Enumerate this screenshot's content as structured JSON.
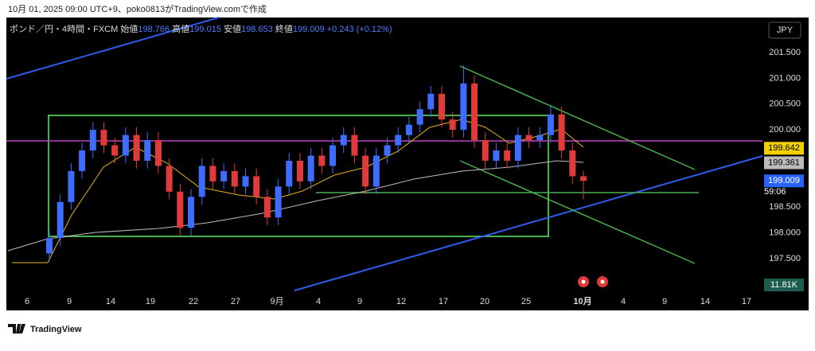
{
  "header": {
    "credit": "10月 01, 2025 09:00 UTC+9、poko0813がTradingView.comで作成"
  },
  "legend": {
    "symbol": "ポンド／円・4時間・FXCM",
    "open_label": "始値",
    "open": "198.766",
    "high_label": "高値",
    "high": "199.015",
    "low_label": "安値",
    "low": "198.653",
    "close_label": "終値",
    "close": "199.009",
    "change": "+0.243 (+0.12%)"
  },
  "currency": "JPY",
  "price_axis": {
    "ticks": [
      {
        "value": 201.5,
        "label": "201.500"
      },
      {
        "value": 201,
        "label": "201.000"
      },
      {
        "value": 200.5,
        "label": "200.500"
      },
      {
        "value": 200,
        "label": "200.000"
      },
      {
        "value": 198.5,
        "label": "198.500"
      },
      {
        "value": 198,
        "label": "198.000"
      },
      {
        "value": 197.5,
        "label": "197.500"
      }
    ]
  },
  "price_tags": [
    {
      "value": 199.642,
      "label": "199.642"
    },
    {
      "value": 199.361,
      "label": "199.361"
    },
    {
      "value": 199.009,
      "label": "199.009"
    }
  ],
  "countdown": "59:06",
  "volume_label": "11.81K",
  "time_axis": [
    "6",
    "9",
    "14",
    "19",
    "22",
    "27",
    "9月",
    "4",
    "9",
    "12",
    "17",
    "20",
    "25",
    "10月",
    "4",
    "9",
    "14",
    "17"
  ],
  "candles": [
    [
      197.6,
      198.05,
      197.45,
      197.9
    ],
    [
      197.9,
      198.75,
      197.75,
      198.6
    ],
    [
      198.6,
      199.35,
      198.45,
      199.2
    ],
    [
      199.2,
      199.75,
      199.05,
      199.6
    ],
    [
      199.6,
      200.15,
      199.45,
      200
    ],
    [
      200,
      200.15,
      199.55,
      199.7
    ],
    [
      199.7,
      199.85,
      199.35,
      199.5
    ],
    [
      199.5,
      200.05,
      199.35,
      199.9
    ],
    [
      199.9,
      200.05,
      199.25,
      199.4
    ],
    [
      199.4,
      199.95,
      199.25,
      199.8
    ],
    [
      199.8,
      199.95,
      199.15,
      199.3
    ],
    [
      199.3,
      199.45,
      198.65,
      198.8
    ],
    [
      198.8,
      198.95,
      197.95,
      198.1
    ],
    [
      198.1,
      198.85,
      197.95,
      198.7
    ],
    [
      198.7,
      199.45,
      198.55,
      199.3
    ],
    [
      199.3,
      199.45,
      198.85,
      199
    ],
    [
      199,
      199.35,
      198.85,
      199.2
    ],
    [
      199.2,
      199.35,
      198.75,
      198.9
    ],
    [
      198.9,
      199.25,
      198.75,
      199.1
    ],
    [
      199.1,
      199.25,
      198.55,
      198.7
    ],
    [
      198.7,
      198.85,
      198.15,
      198.3
    ],
    [
      198.3,
      199.05,
      198.15,
      198.9
    ],
    [
      198.9,
      199.55,
      198.75,
      199.4
    ],
    [
      199.4,
      199.55,
      198.85,
      199
    ],
    [
      199,
      199.65,
      198.85,
      199.5
    ],
    [
      199.5,
      199.65,
      199.15,
      199.3
    ],
    [
      199.3,
      199.85,
      199.15,
      199.7
    ],
    [
      199.7,
      200.05,
      199.55,
      199.9
    ],
    [
      199.9,
      200.05,
      199.35,
      199.5
    ],
    [
      199.5,
      199.65,
      198.75,
      198.9
    ],
    [
      198.9,
      199.65,
      198.75,
      199.5
    ],
    [
      199.5,
      199.85,
      199.35,
      199.7
    ],
    [
      199.7,
      200.05,
      199.55,
      199.9
    ],
    [
      199.9,
      200.25,
      199.75,
      200.1
    ],
    [
      200.1,
      200.55,
      199.95,
      200.4
    ],
    [
      200.4,
      200.85,
      200.25,
      200.7
    ],
    [
      200.7,
      200.85,
      200.05,
      200.2
    ],
    [
      200.2,
      200.35,
      199.85,
      200
    ],
    [
      200,
      201.25,
      199.85,
      200.9
    ],
    [
      200.9,
      201.05,
      199.65,
      199.8
    ],
    [
      199.8,
      199.95,
      199.25,
      199.4
    ],
    [
      199.4,
      199.75,
      199.25,
      199.6
    ],
    [
      199.6,
      199.75,
      199.25,
      199.4
    ],
    [
      199.4,
      200.05,
      199.25,
      199.9
    ],
    [
      199.9,
      200.05,
      199.65,
      199.8
    ],
    [
      199.8,
      200.05,
      199.65,
      199.9
    ],
    [
      199.9,
      200.45,
      199.75,
      200.3
    ],
    [
      200.3,
      200.45,
      199.45,
      199.6
    ],
    [
      199.6,
      199.75,
      198.95,
      199.1
    ],
    [
      199.1,
      199.2,
      198.65,
      199.009
    ]
  ],
  "footer": {
    "brand": "TradingView"
  }
}
